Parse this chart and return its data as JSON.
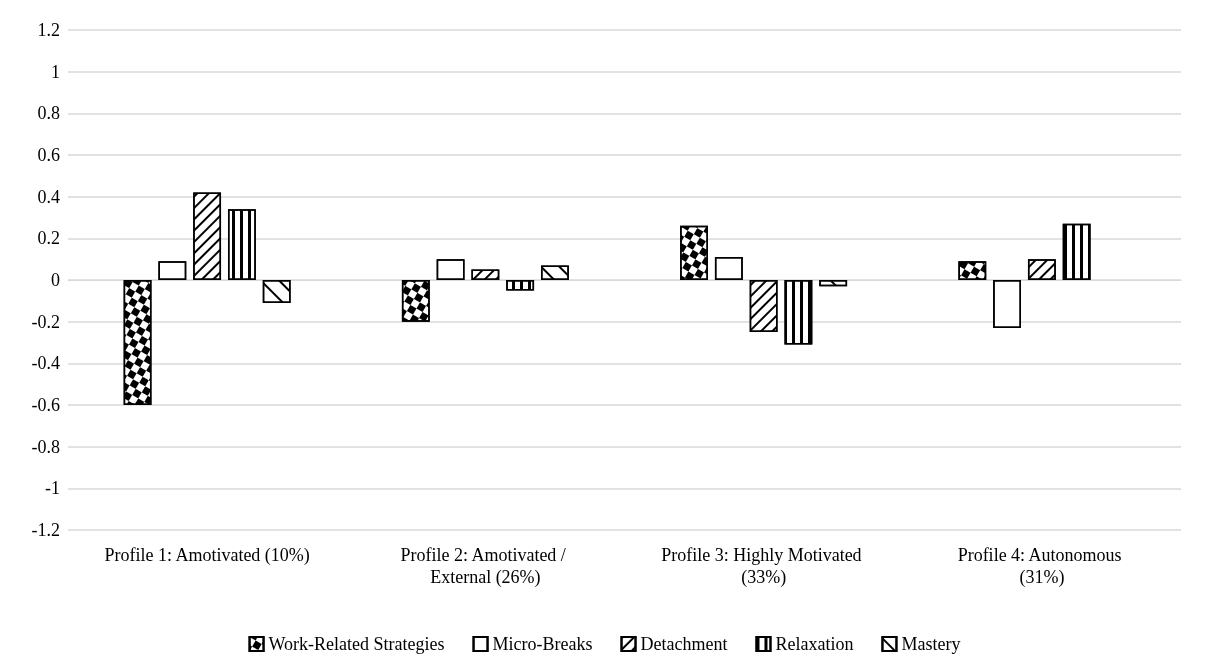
{
  "chart_data": {
    "type": "bar",
    "categories": [
      "Profile 1: Amotivated (10%)",
      "Profile 2: Amotivated / External (26%)",
      "Profile 3: Highly Motivated (33%)",
      "Profile 4: Autonomous (31%)"
    ],
    "series": [
      {
        "name": "Work-Related Strategies",
        "color": "#000000",
        "values": [
          -0.6,
          -0.2,
          0.26,
          0.09
        ]
      },
      {
        "name": "Micro-Breaks",
        "color": "#000000",
        "values": [
          0.09,
          0.1,
          0.11,
          -0.23
        ]
      },
      {
        "name": "Detachment",
        "color": "#000000",
        "values": [
          0.42,
          0.05,
          -0.25,
          0.1
        ]
      },
      {
        "name": "Relaxation",
        "color": "#000000",
        "values": [
          0.34,
          -0.05,
          -0.31,
          0.27
        ]
      },
      {
        "name": "Mastery",
        "color": "#000000",
        "values": [
          -0.11,
          0.07,
          -0.03,
          null
        ]
      }
    ],
    "ylim": [
      -1.2,
      1.2
    ],
    "yticks": [
      -1.2,
      -1,
      -0.8,
      -0.6,
      -0.4,
      -0.2,
      0,
      0.2,
      0.4,
      0.6,
      0.8,
      1,
      1.2
    ],
    "grid": "y",
    "legend": "bottom"
  }
}
